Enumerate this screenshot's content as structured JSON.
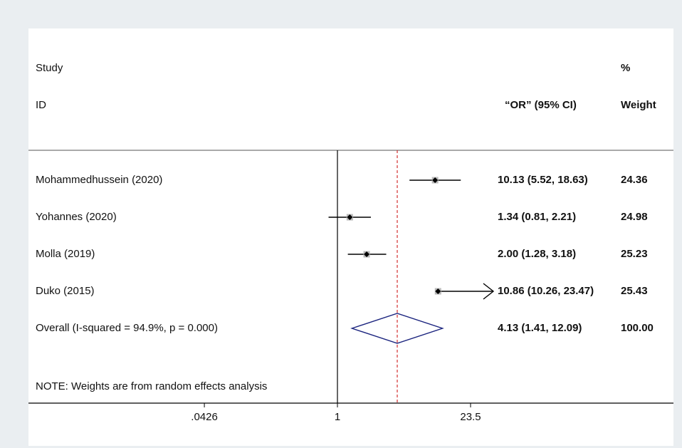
{
  "headers": {
    "study": "Study",
    "id": "ID",
    "effect": "“OR” (95% CI)",
    "pct": "%",
    "weight": "Weight"
  },
  "note": "NOTE: Weights are from random effects analysis",
  "chart_data": {
    "type": "forest",
    "scale": "log",
    "null_value": 1,
    "overall_line": 4.13,
    "x_ticks": [
      {
        "value": 0.0426,
        "label": ".0426"
      },
      {
        "value": 1,
        "label": "1"
      },
      {
        "value": 23.5,
        "label": "23.5"
      }
    ],
    "studies": [
      {
        "label": "Mohammedhussein (2020)",
        "or": 10.13,
        "lo": 5.52,
        "hi": 18.63,
        "ci_text": "10.13 (5.52, 18.63)",
        "weight": "24.36"
      },
      {
        "label": "Yohannes (2020)",
        "or": 1.34,
        "lo": 0.81,
        "hi": 2.21,
        "ci_text": "1.34 (0.81, 2.21)",
        "weight": "24.98"
      },
      {
        "label": "Molla (2019)",
        "or": 2.0,
        "lo": 1.28,
        "hi": 3.18,
        "ci_text": "2.00 (1.28, 3.18)",
        "weight": "25.23"
      },
      {
        "label": "Duko (2015)",
        "or": 10.86,
        "lo": 10.26,
        "hi": 23.47,
        "ci_text": "10.86 (10.26, 23.47)",
        "weight": "25.43",
        "arrow_right": true
      }
    ],
    "overall": {
      "label": "Overall  (I-squared = 94.9%, p = 0.000)",
      "or": 4.13,
      "lo": 1.41,
      "hi": 12.09,
      "ci_text": "4.13 (1.41, 12.09)",
      "weight": "100.00"
    },
    "colors": {
      "ci_line": "#000000",
      "point": "#000000",
      "box": "#b8b8b8",
      "diamond": "#1a237e",
      "overall_line": "#d32f2f",
      "axis": "#000000"
    }
  }
}
